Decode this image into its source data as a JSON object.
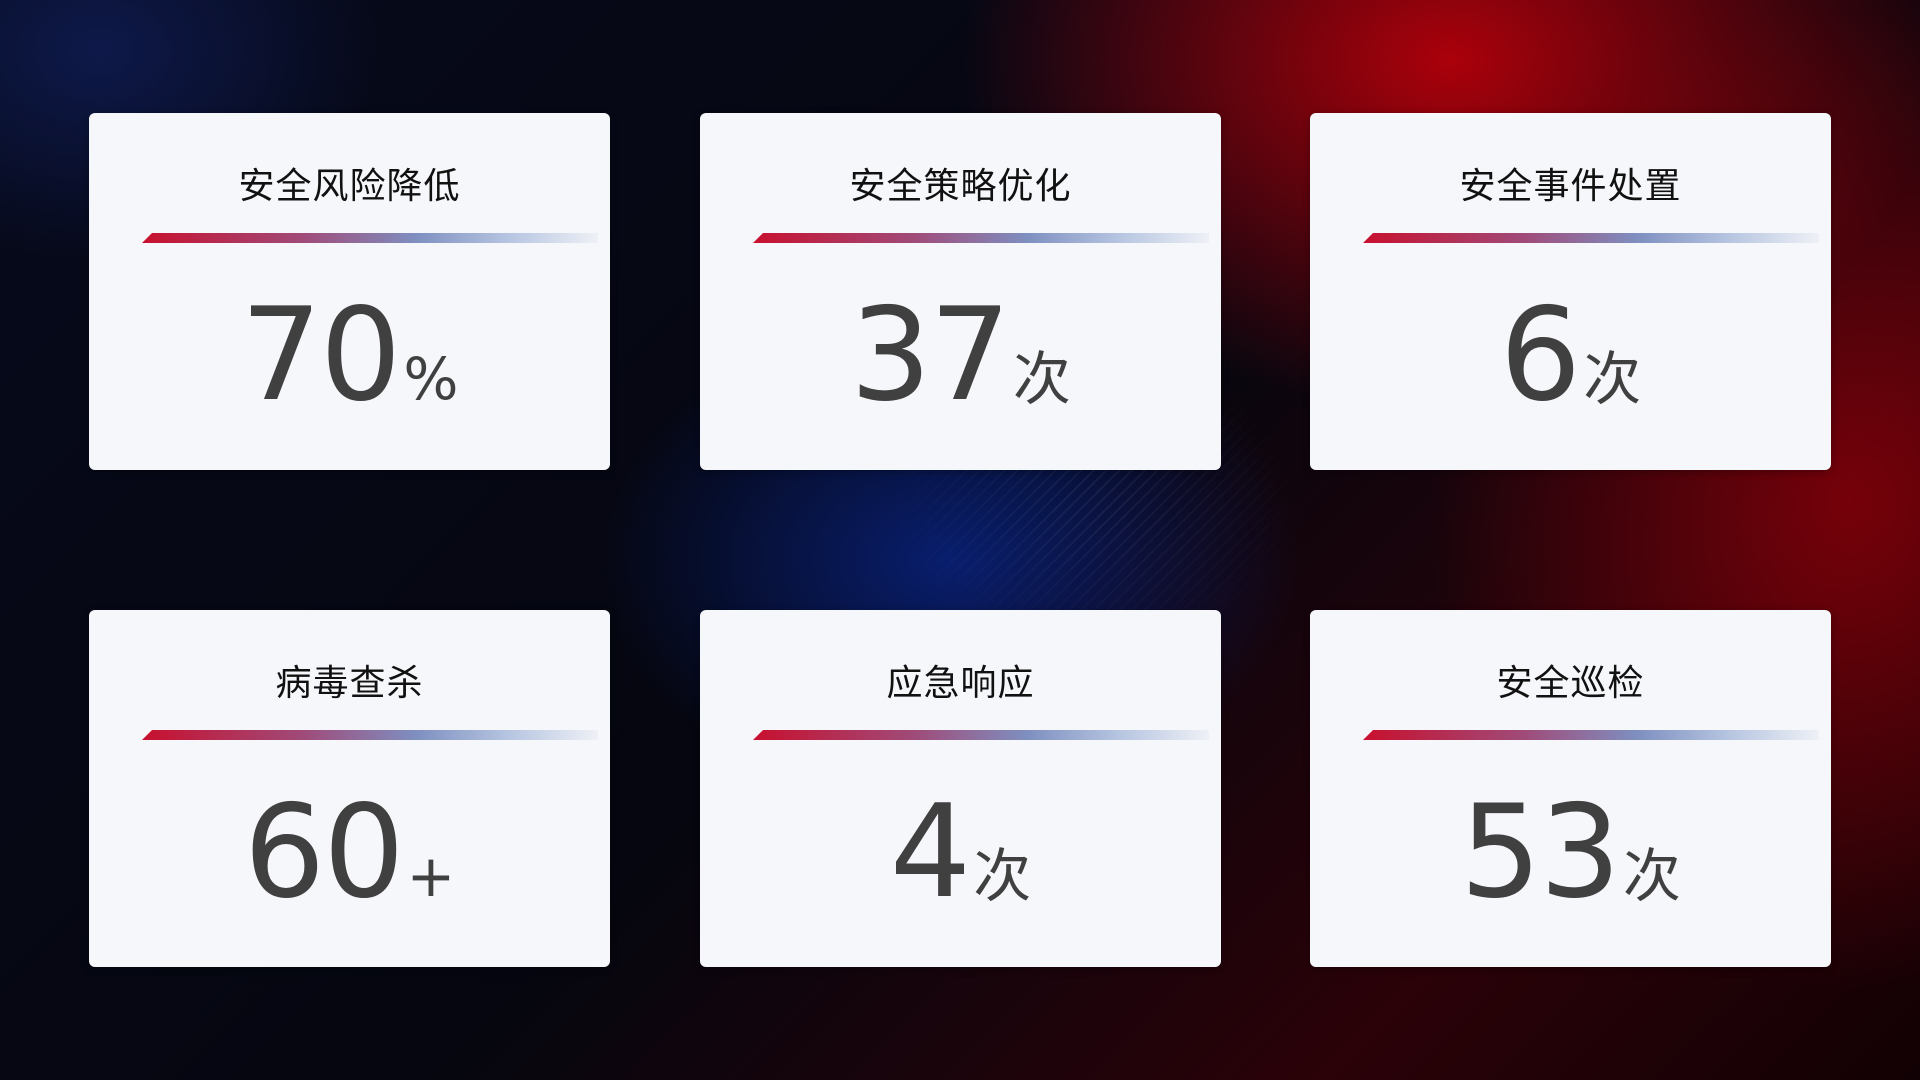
{
  "cards": [
    {
      "title": "安全风险降低",
      "value": "70",
      "unit": "%"
    },
    {
      "title": "安全策略优化",
      "value": "37",
      "unit": "次"
    },
    {
      "title": "安全事件处置",
      "value": "6",
      "unit": "次"
    },
    {
      "title": "病毒查杀",
      "value": "60",
      "unit": "+"
    },
    {
      "title": "应急响应",
      "value": "4",
      "unit": "次"
    },
    {
      "title": "安全巡检",
      "value": "53",
      "unit": "次"
    }
  ],
  "colors": {
    "accent_red": "#c8102e",
    "accent_blue": "#7e8fc0",
    "card_bg": "#f6f7fb",
    "value_text": "#404040"
  }
}
